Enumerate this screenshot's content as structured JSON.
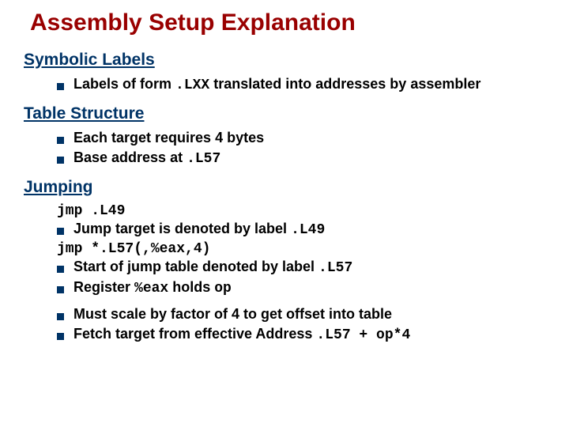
{
  "title": "Assembly Setup Explanation",
  "colors": {
    "title": "#990000",
    "heading": "#003366",
    "bullet": "#003366",
    "text": "#000000",
    "background": "#ffffff"
  },
  "sections": {
    "symbolic": {
      "header": "Symbolic Labels",
      "b1_pre": "Labels of form ",
      "b1_code": ".LXX",
      "b1_post": " translated into addresses by assembler"
    },
    "table": {
      "header": "Table Structure",
      "b1": "Each target requires 4 bytes",
      "b2_pre": "Base address at ",
      "b2_code": ".L57"
    },
    "jumping": {
      "header": "Jumping",
      "code1": "jmp .L49",
      "b1_pre": "Jump target is denoted by label ",
      "b1_code": ".L49",
      "code2": "jmp *.L57(,%eax,4)",
      "b2_pre": "Start of jump table denoted by label ",
      "b2_code": ".L57",
      "b3_pre": "Register ",
      "b3_code": "%eax",
      "b3_mid": " holds ",
      "b3_code2": "op",
      "b4": "Must scale by factor of 4 to get offset into table",
      "b5_pre": "Fetch target from effective Address ",
      "b5_code": ".L57 + op*4"
    }
  }
}
